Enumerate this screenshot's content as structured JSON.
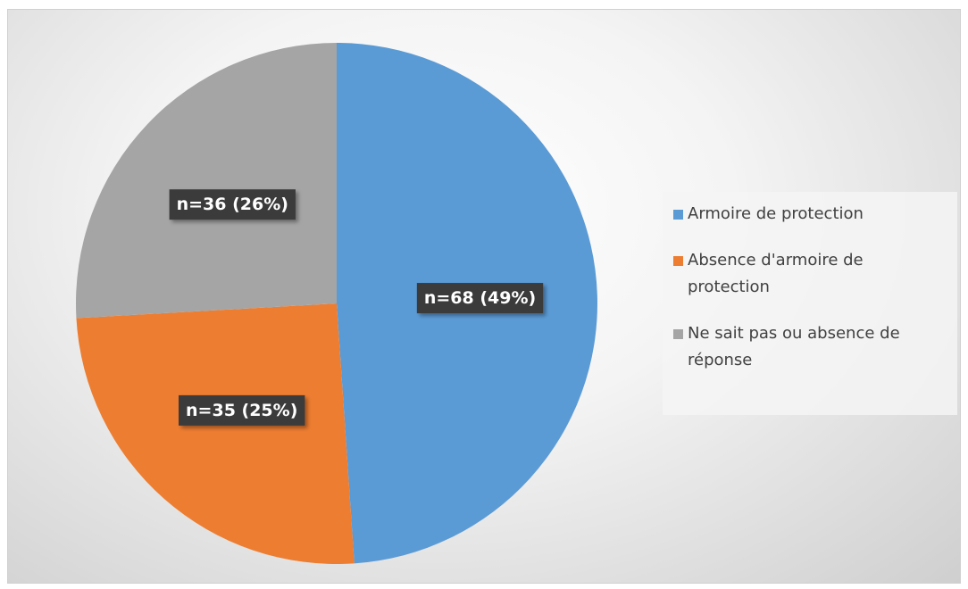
{
  "chart_data": {
    "type": "pie",
    "categories": [
      "Armoire de protection",
      "Absence d'armoire de protection",
      "Ne sait pas ou absence de réponse"
    ],
    "values": [
      68,
      35,
      36
    ],
    "value_labels": [
      "n=68 (49%)",
      "n=35 (25%)",
      "n=36 (26%)"
    ],
    "colors": [
      "#5b9bd5",
      "#ed7d31",
      "#a5a5a5"
    ],
    "legend": "right"
  }
}
